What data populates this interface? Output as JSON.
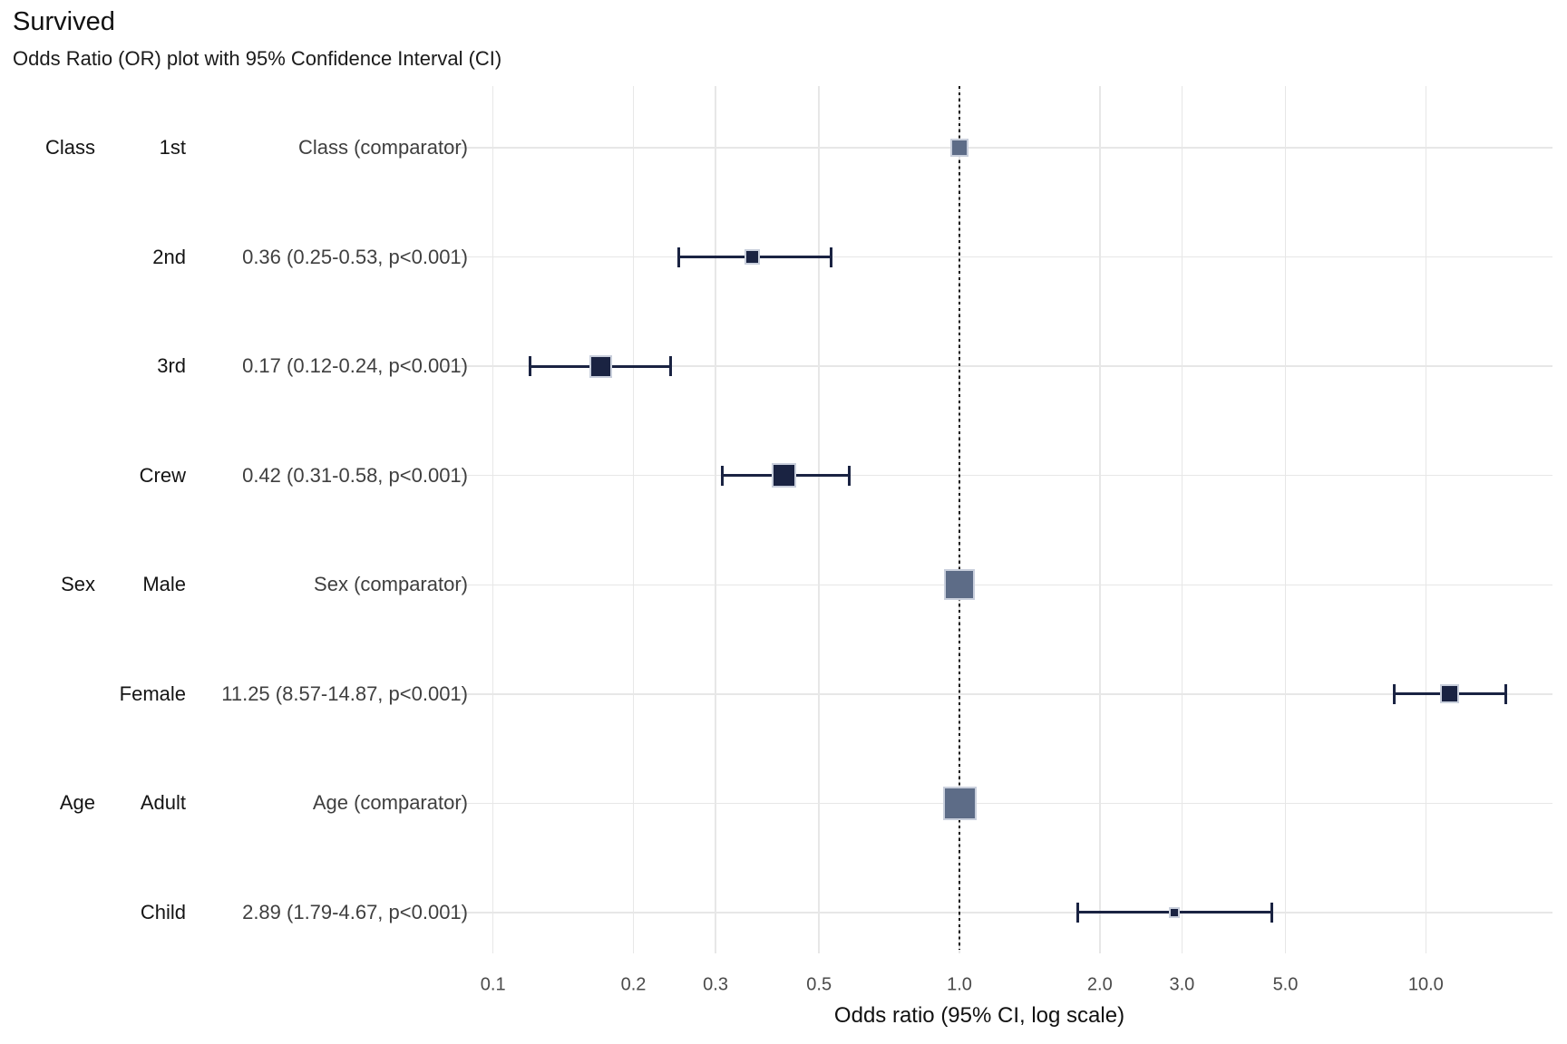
{
  "page": {
    "title": "Survived",
    "subtitle": "Odds Ratio (OR) plot with 95% Confidence Interval (CI)"
  },
  "chart_data": {
    "type": "scatter",
    "subtype": "forest-plot-odds-ratio",
    "title": "Survived",
    "subtitle": "Odds Ratio (OR) plot with 95% Confidence Interval (CI)",
    "xlabel": "Odds ratio (95% CI, log scale)",
    "x_scale": "log10",
    "xlim": [
      0.075,
      18
    ],
    "x_ticks": [
      0.1,
      0.2,
      0.3,
      0.5,
      1.0,
      2.0,
      3.0,
      5.0,
      10.0
    ],
    "x_tick_labels": [
      "0.1",
      "0.2",
      "0.3",
      "0.5",
      "1.0",
      "2.0",
      "3.0",
      "5.0",
      "10.0"
    ],
    "reference_line_x": 1.0,
    "grid": true,
    "legend": "none",
    "colors": {
      "estimate_marker": "#1a2342",
      "comparator_marker": "#5d6c87",
      "marker_border": "#c9cfdc",
      "gridline": "#e7e7e7",
      "reference_line": "#141414",
      "label_text": "#141414",
      "estimate_text": "#3f3f3f",
      "tick_text": "#4a4a4a"
    },
    "rows": [
      {
        "group": "Class",
        "level": "1st",
        "label": "Class (comparator)",
        "or": 1.0,
        "ci_low": null,
        "ci_high": null,
        "comparator": true,
        "marker_size": 20
      },
      {
        "group": "",
        "level": "2nd",
        "label": "0.36 (0.25-0.53, p<0.001)",
        "or": 0.36,
        "ci_low": 0.25,
        "ci_high": 0.53,
        "comparator": false,
        "marker_size": 17
      },
      {
        "group": "",
        "level": "3rd",
        "label": "0.17 (0.12-0.24, p<0.001)",
        "or": 0.17,
        "ci_low": 0.12,
        "ci_high": 0.24,
        "comparator": false,
        "marker_size": 25
      },
      {
        "group": "",
        "level": "Crew",
        "label": "0.42 (0.31-0.58, p<0.001)",
        "or": 0.42,
        "ci_low": 0.31,
        "ci_high": 0.58,
        "comparator": false,
        "marker_size": 27
      },
      {
        "group": "Sex",
        "level": "Male",
        "label": "Sex (comparator)",
        "or": 1.0,
        "ci_low": null,
        "ci_high": null,
        "comparator": true,
        "marker_size": 34
      },
      {
        "group": "",
        "level": "Female",
        "label": "11.25 (8.57-14.87, p<0.001)",
        "or": 11.25,
        "ci_low": 8.57,
        "ci_high": 14.87,
        "comparator": false,
        "marker_size": 21
      },
      {
        "group": "Age",
        "level": "Adult",
        "label": "Age (comparator)",
        "or": 1.0,
        "ci_low": null,
        "ci_high": null,
        "comparator": true,
        "marker_size": 37
      },
      {
        "group": "",
        "level": "Child",
        "label": "2.89 (1.79-4.67, p<0.001)",
        "or": 2.89,
        "ci_low": 1.79,
        "ci_high": 4.67,
        "comparator": false,
        "marker_size": 12
      }
    ]
  }
}
